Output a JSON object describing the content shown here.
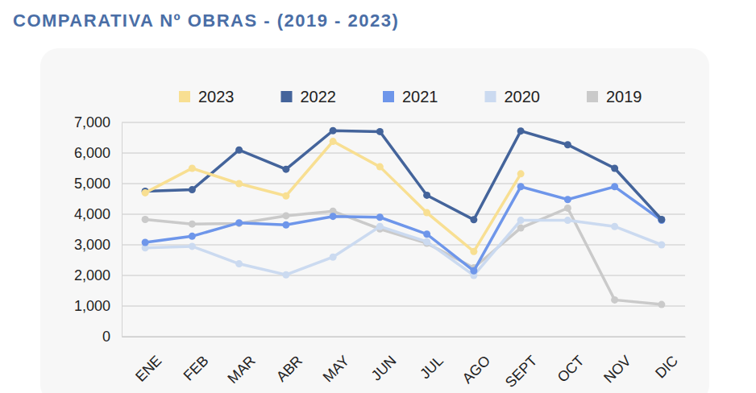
{
  "chart_data": {
    "type": "line",
    "title": "COMPARATIVA Nº OBRAS - (2019 - 2023)",
    "categories": [
      "ENE",
      "FEB",
      "MAR",
      "ABR",
      "MAY",
      "JUN",
      "JUL",
      "AGO",
      "SEPT",
      "OCT",
      "NOV",
      "DIC"
    ],
    "series": [
      {
        "name": "2023",
        "color": "#f8df92",
        "values": [
          4700,
          5500,
          5000,
          4600,
          6380,
          5550,
          4050,
          2780,
          5320,
          null,
          null,
          null
        ]
      },
      {
        "name": "2022",
        "color": "#44649b",
        "values": [
          4750,
          4800,
          6100,
          5470,
          6730,
          6700,
          4620,
          3820,
          6720,
          6270,
          5500,
          3830
        ]
      },
      {
        "name": "2021",
        "color": "#6e96ea",
        "values": [
          3080,
          3280,
          3720,
          3650,
          3930,
          3900,
          3350,
          2150,
          4900,
          4480,
          4900,
          3800
        ]
      },
      {
        "name": "2020",
        "color": "#cbdaf0",
        "values": [
          2900,
          2950,
          2380,
          2020,
          2600,
          3600,
          3100,
          2000,
          3800,
          3800,
          3600,
          3000
        ]
      },
      {
        "name": "2019",
        "color": "#cacaca",
        "values": [
          3830,
          3680,
          3700,
          3950,
          4100,
          3520,
          3050,
          2250,
          3550,
          4200,
          1200,
          1050
        ]
      }
    ],
    "ylim": [
      0,
      7000
    ],
    "yticks": [
      0,
      {
        "value": 1000,
        "label": "1,000"
      },
      {
        "value": 2000,
        "label": "2,000"
      },
      {
        "value": 3000,
        "label": "3,000"
      },
      {
        "value": 4000,
        "label": "4,000"
      },
      {
        "value": 5000,
        "label": "5,000"
      },
      {
        "value": 6000,
        "label": "6,000"
      },
      {
        "value": 7000,
        "label": "7,000"
      }
    ],
    "grid": true,
    "legend": "top",
    "marker": "circle"
  }
}
